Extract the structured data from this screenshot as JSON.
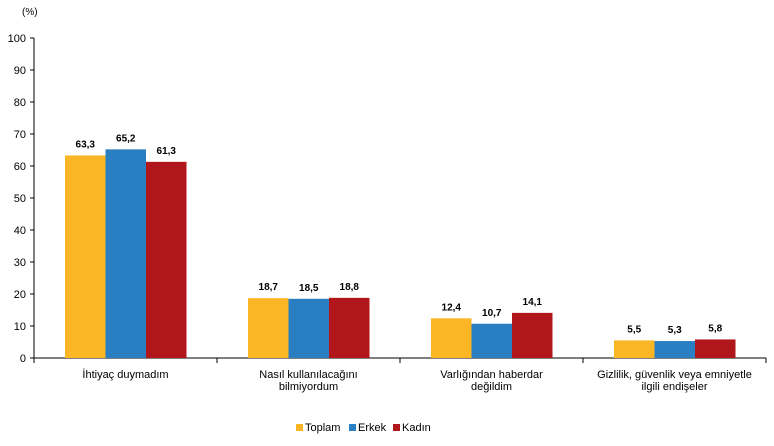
{
  "chart_data": {
    "type": "bar",
    "unit_label": "(%)",
    "categories": [
      [
        "İhtiyaç duymadım"
      ],
      [
        "Nasıl kullanılacağını",
        "bilmiyordum"
      ],
      [
        "Varlığından haberdar",
        "değildim"
      ],
      [
        "Gizlilik, güvenlik veya emniyetle",
        "ilgili endişeler"
      ]
    ],
    "series": [
      {
        "name": "Toplam",
        "color": "#fbb625",
        "values": [
          63.3,
          18.7,
          12.4,
          5.5
        ],
        "labels": [
          "63,3",
          "18,7",
          "12,4",
          "5,5"
        ]
      },
      {
        "name": "Erkek",
        "color": "#2a7fc2",
        "values": [
          65.2,
          18.5,
          10.7,
          5.3
        ],
        "labels": [
          "65,2",
          "18,5",
          "10,7",
          "5,3"
        ]
      },
      {
        "name": "Kadın",
        "color": "#b0161a",
        "values": [
          61.3,
          18.8,
          14.1,
          5.8
        ],
        "labels": [
          "61,3",
          "18,8",
          "14,1",
          "5,8"
        ]
      }
    ],
    "ylim": [
      0,
      100
    ],
    "yticks": [
      "0",
      "10",
      "20",
      "30",
      "40",
      "50",
      "60",
      "70",
      "80",
      "90",
      "100"
    ],
    "grid": false,
    "legend": "bottom"
  }
}
